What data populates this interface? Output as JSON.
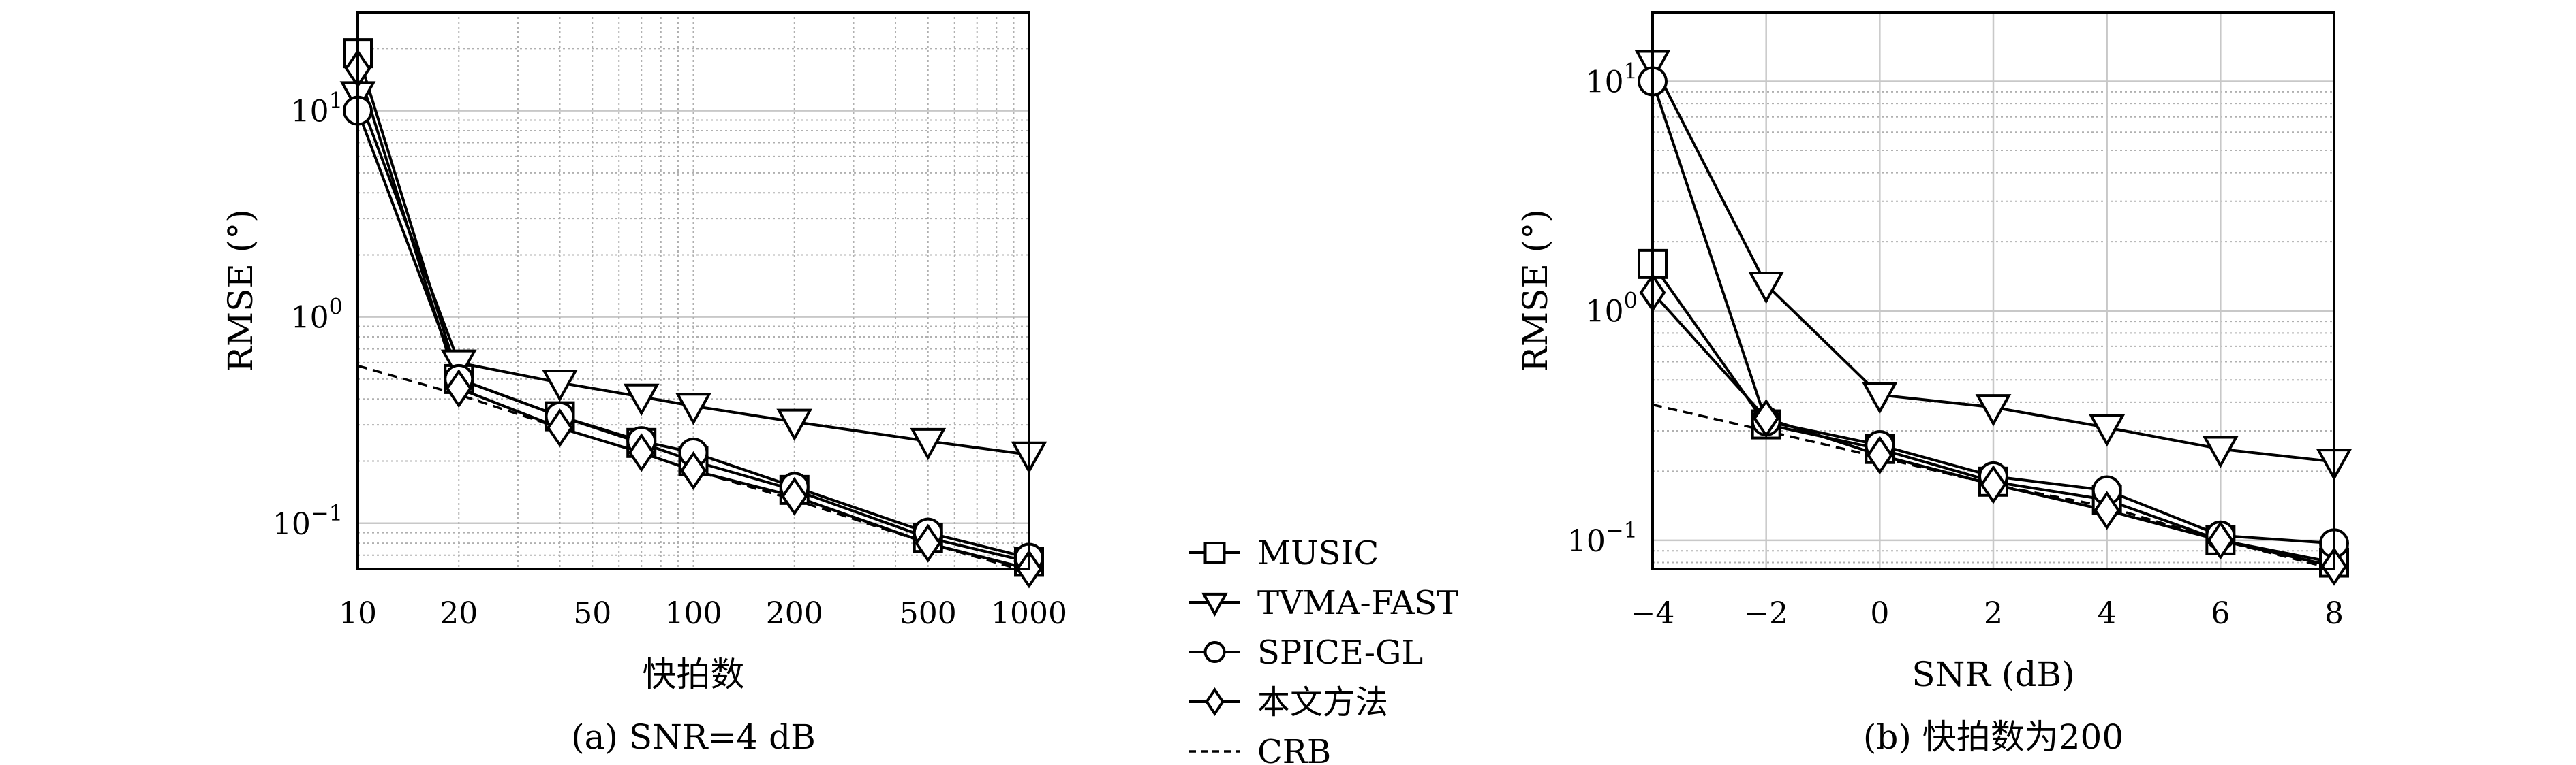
{
  "chart_data": [
    {
      "type": "line",
      "caption": "(a) SNR=4 dB",
      "xlabel": "快拍数",
      "ylabel": "RMSE (°)",
      "xscale": "log",
      "yscale": "log",
      "xlim": [
        10,
        1000
      ],
      "ylim": [
        0.06,
        30
      ],
      "xticks": [
        10,
        20,
        50,
        100,
        200,
        500,
        1000
      ],
      "xticklabels": [
        "10",
        "20",
        "50",
        "100",
        "200",
        "500",
        "1000"
      ],
      "yticks": [
        0.1,
        1,
        10
      ],
      "ytick_base": "10",
      "ytick_exps": [
        "−1",
        "0",
        "1"
      ],
      "grid": true,
      "x": [
        10,
        20,
        40,
        70,
        100,
        200,
        500,
        1000
      ],
      "series": [
        {
          "name": "MUSIC",
          "marker": "square",
          "dash": "solid",
          "values": [
            19,
            0.5,
            0.33,
            0.245,
            0.2,
            0.145,
            0.085,
            0.065
          ]
        },
        {
          "name": "TVMA-FAST",
          "marker": "triangle-down",
          "dash": "solid",
          "values": [
            12,
            0.6,
            0.48,
            0.41,
            0.37,
            0.31,
            0.25,
            0.215
          ]
        },
        {
          "name": "SPICE-GL",
          "marker": "circle",
          "dash": "solid",
          "values": [
            10,
            0.5,
            0.33,
            0.25,
            0.22,
            0.15,
            0.09,
            0.068
          ]
        },
        {
          "name": "本文方法",
          "marker": "diamond",
          "dash": "solid",
          "values": [
            16,
            0.45,
            0.29,
            0.22,
            0.18,
            0.135,
            0.08,
            0.06
          ]
        },
        {
          "name": "CRB",
          "marker": "none",
          "dash": "dashed",
          "values": [
            0.58,
            0.42,
            0.29,
            0.22,
            0.18,
            0.13,
            0.08,
            0.058
          ]
        }
      ]
    },
    {
      "type": "line",
      "caption": "(b) 快拍数为200",
      "xlabel": "SNR (dB)",
      "ylabel": "RMSE (°)",
      "xscale": "linear",
      "yscale": "log",
      "xlim": [
        -4,
        8
      ],
      "ylim": [
        0.075,
        20
      ],
      "xticks": [
        -4,
        -2,
        0,
        2,
        4,
        6,
        8
      ],
      "xticklabels": [
        "−4",
        "−2",
        "0",
        "2",
        "4",
        "6",
        "8"
      ],
      "yticks": [
        0.1,
        1,
        10
      ],
      "ytick_base": "10",
      "ytick_exps": [
        "−1",
        "0",
        "1"
      ],
      "grid": true,
      "x": [
        -4,
        -2,
        0,
        2,
        4,
        6,
        8
      ],
      "series": [
        {
          "name": "MUSIC",
          "marker": "square",
          "dash": "solid",
          "values": [
            1.6,
            0.32,
            0.25,
            0.18,
            0.15,
            0.1,
            0.08
          ]
        },
        {
          "name": "TVMA-FAST",
          "marker": "triangle-down",
          "dash": "solid",
          "values": [
            12,
            1.3,
            0.43,
            0.38,
            0.31,
            0.25,
            0.22
          ]
        },
        {
          "name": "SPICE-GL",
          "marker": "circle",
          "dash": "solid",
          "values": [
            10,
            0.33,
            0.26,
            0.19,
            0.165,
            0.105,
            0.097
          ]
        },
        {
          "name": "本文方法",
          "marker": "diamond",
          "dash": "solid",
          "values": [
            1.2,
            0.34,
            0.235,
            0.175,
            0.135,
            0.1,
            0.077
          ]
        },
        {
          "name": "CRB",
          "marker": "none",
          "dash": "dashed",
          "values": [
            0.39,
            0.3,
            0.23,
            0.175,
            0.14,
            0.1,
            0.075
          ]
        }
      ]
    }
  ],
  "legend": {
    "placement": "between panels, bottom",
    "entries": [
      {
        "label": "MUSIC",
        "marker": "square",
        "dash": "solid"
      },
      {
        "label": "TVMA-FAST",
        "marker": "triangle-down",
        "dash": "solid"
      },
      {
        "label": "SPICE-GL",
        "marker": "circle",
        "dash": "solid"
      },
      {
        "label": "本文方法",
        "marker": "diamond",
        "dash": "solid"
      },
      {
        "label": "CRB",
        "marker": "none",
        "dash": "dashed"
      }
    ]
  },
  "colors": {
    "line": "#000000",
    "grid": "#c8c8c8",
    "minor_grid": "#b0b0b0"
  }
}
